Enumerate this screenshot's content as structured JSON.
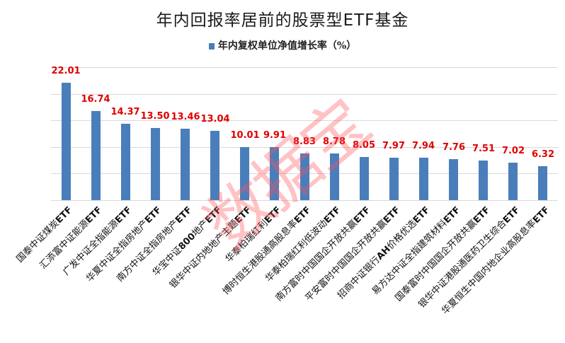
{
  "title": "年内回报率居前的股票型ETF基金",
  "legend": {
    "label": "年内复权单位净值增长率（%）",
    "color": "#4a7ebb"
  },
  "watermark": "数据宝",
  "colors": {
    "bar": "#4a7ebb",
    "data_label": "#e00000",
    "gridline": "#d9d9d9"
  },
  "chart_data": {
    "type": "bar",
    "title": "年内回报率居前的股票型ETF基金",
    "xlabel": "",
    "ylabel": "",
    "ylim": [
      0,
      25
    ],
    "grid": true,
    "gridlines": [
      0,
      5,
      10,
      15,
      20,
      25
    ],
    "legend_position": "top",
    "y_axis_labels_visible": false,
    "categories": [
      "国泰中证煤炭ETF",
      "汇添富中证能源ETF",
      "广发中证全指能源ETF",
      "华夏中证全指房地产ETF",
      "南方中证全指房地产ETF",
      "华宝中证800地产ETF",
      "银华中证内地地产主题ETF",
      "华泰柏瑞红利ETF",
      "博时恒生港股通高股息率ETF",
      "华泰柏瑞红利低波动ETF",
      "南方富时中国国企开放共赢ETF",
      "平安富时中国国企开放共赢ETF",
      "招商中证银行AH价格优选ETF",
      "易方达中证全指建筑材料ETF",
      "国泰富时中国国企开放共赢ETF",
      "银华中证港股通医药卫生综合ETF",
      "华夏恒生中国内地企业高股息率ETF"
    ],
    "series": [
      {
        "name": "年内复权单位净值增长率（%）",
        "values": [
          22.01,
          16.74,
          14.37,
          13.5,
          13.46,
          13.04,
          10.01,
          9.91,
          8.83,
          8.78,
          8.05,
          7.97,
          7.94,
          7.76,
          7.51,
          7.02,
          6.32
        ],
        "labels": [
          "22.01",
          "16.74",
          "14.37",
          "13.50",
          "13.46",
          "13.04",
          "10.01",
          "9.91",
          "8.83",
          "8.78",
          "8.05",
          "7.97",
          "7.94",
          "7.76",
          "7.51",
          "7.02",
          "6.32"
        ]
      }
    ]
  }
}
